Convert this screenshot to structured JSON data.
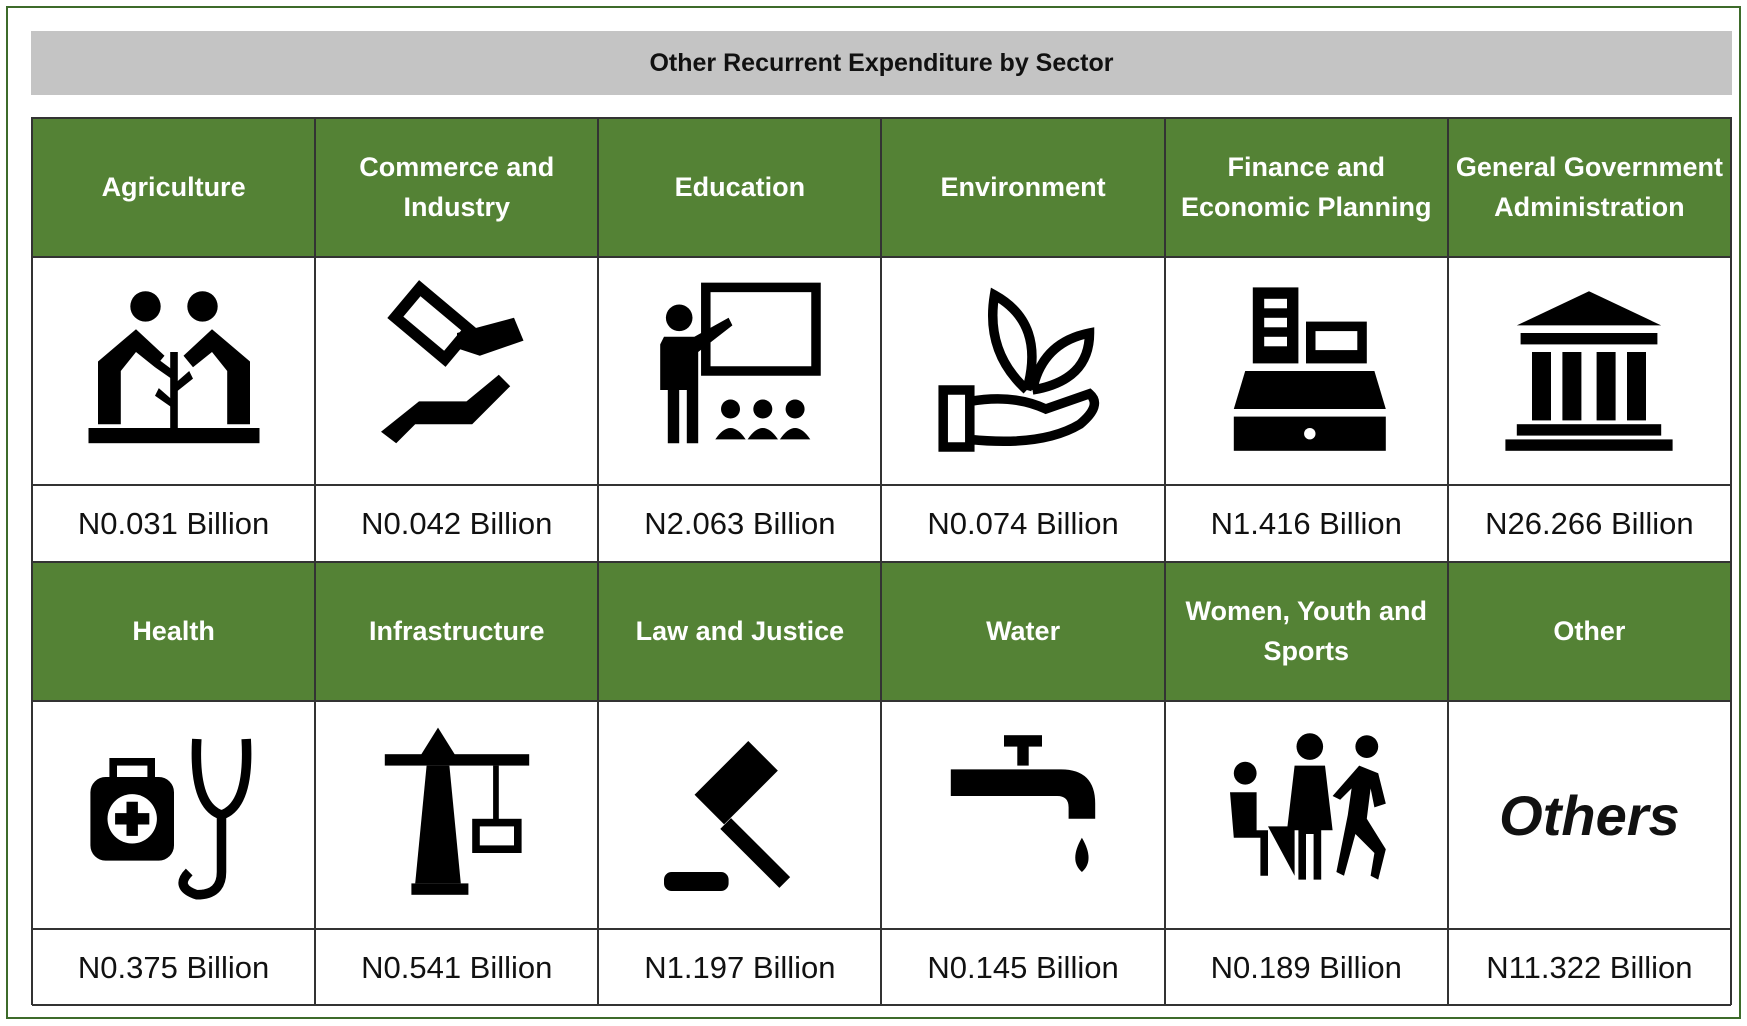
{
  "title": "Other Recurrent Expenditure by Sector",
  "sectors": [
    {
      "name": "Agriculture",
      "value": "N0.031 Billion"
    },
    {
      "name": "Commerce and Industry",
      "value": "N0.042 Billion"
    },
    {
      "name": "Education",
      "value": "N2.063 Billion"
    },
    {
      "name": "Environment",
      "value": "N0.074 Billion"
    },
    {
      "name": "Finance and Economic Planning",
      "value": "N1.416 Billion"
    },
    {
      "name": "General Government Administration",
      "value": "N26.266 Billion"
    },
    {
      "name": "Health",
      "value": "N0.375 Billion"
    },
    {
      "name": "Infrastructure",
      "value": "N0.541 Billion"
    },
    {
      "name": "Law and Justice",
      "value": "N1.197 Billion"
    },
    {
      "name": "Water",
      "value": "N0.145 Billion"
    },
    {
      "name": "Women, Youth and Sports",
      "value": "N0.189 Billion"
    },
    {
      "name": "Other",
      "icon_text": "Others",
      "value": "N11.322 Billion"
    }
  ]
}
